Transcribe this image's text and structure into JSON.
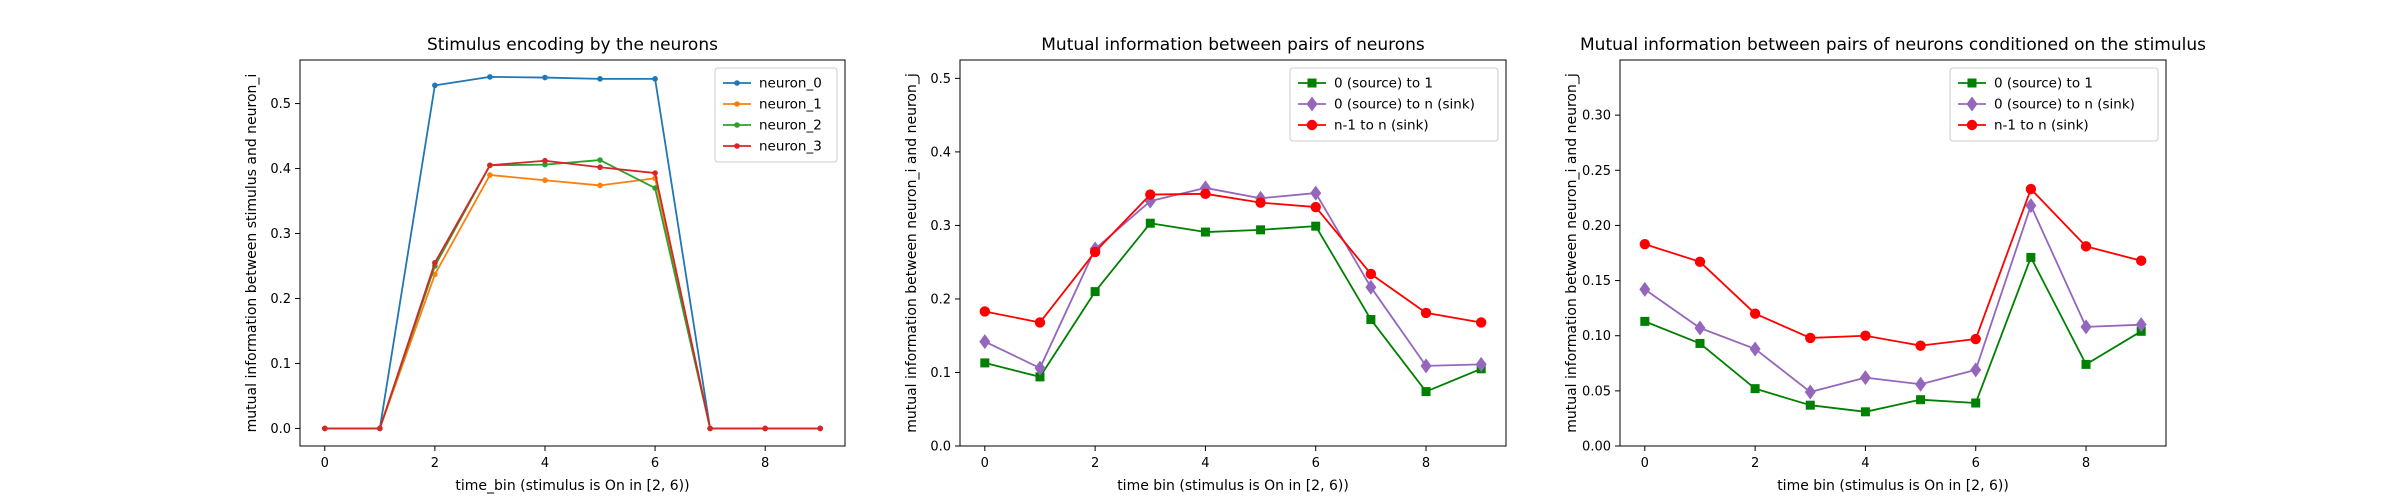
{
  "chart_data": [
    {
      "type": "line",
      "title": "Stimulus encoding by the neurons",
      "xlabel": "time_bin (stimulus is On in [2, 6))",
      "ylabel": "mutual information between stimulus and neuron_i",
      "xlim": [
        -0.45,
        9.45
      ],
      "ylim": [
        -0.027,
        0.567
      ],
      "xticks": [
        0,
        2,
        4,
        6,
        8
      ],
      "yticks": [
        0.0,
        0.1,
        0.2,
        0.3,
        0.4,
        0.5
      ],
      "ytick_decimals": 1,
      "grid": false,
      "legend_position": "top-right",
      "x": [
        0,
        1,
        2,
        3,
        4,
        5,
        6,
        7,
        8,
        9
      ],
      "series": [
        {
          "name": "neuron_0",
          "color": "#1f77b4",
          "marker": "point",
          "values": [
            0.0,
            0.0,
            0.528,
            0.541,
            0.54,
            0.538,
            0.538,
            0.0,
            0.0,
            0.0
          ]
        },
        {
          "name": "neuron_1",
          "color": "#ff7f0e",
          "marker": "point",
          "values": [
            0.0,
            0.0,
            0.237,
            0.39,
            0.382,
            0.374,
            0.385,
            0.0,
            0.0,
            0.0
          ]
        },
        {
          "name": "neuron_2",
          "color": "#2ca02c",
          "marker": "point",
          "values": [
            0.0,
            0.0,
            0.25,
            0.405,
            0.406,
            0.413,
            0.37,
            0.0,
            0.0,
            0.0
          ]
        },
        {
          "name": "neuron_3",
          "color": "#d62728",
          "marker": "point",
          "values": [
            0.0,
            0.0,
            0.255,
            0.405,
            0.412,
            0.402,
            0.393,
            0.0,
            0.0,
            0.0
          ]
        }
      ]
    },
    {
      "type": "line",
      "title": "Mutual information between pairs of neurons",
      "xlabel": "time bin (stimulus is On in [2, 6))",
      "ylabel": "mutual information between neuron_i and neuron_j",
      "xlim": [
        -0.45,
        9.45
      ],
      "ylim": [
        0.0,
        0.525
      ],
      "xticks": [
        0,
        2,
        4,
        6,
        8
      ],
      "yticks": [
        0.0,
        0.1,
        0.2,
        0.3,
        0.4,
        0.5
      ],
      "ytick_decimals": 1,
      "grid": false,
      "legend_position": "top-right",
      "x": [
        0,
        1,
        2,
        3,
        4,
        5,
        6,
        7,
        8,
        9
      ],
      "series": [
        {
          "name": "0 (source) to 1",
          "color": "#008000",
          "marker": "square",
          "values": [
            0.113,
            0.094,
            0.21,
            0.303,
            0.291,
            0.294,
            0.299,
            0.172,
            0.074,
            0.105
          ]
        },
        {
          "name": "0 (source) to n (sink)",
          "color": "#9467bd",
          "marker": "diamond",
          "values": [
            0.142,
            0.106,
            0.268,
            0.333,
            0.351,
            0.337,
            0.344,
            0.216,
            0.109,
            0.111
          ]
        },
        {
          "name": "n-1 to n (sink)",
          "color": "#ff0000",
          "marker": "circle",
          "values": [
            0.183,
            0.168,
            0.264,
            0.342,
            0.343,
            0.331,
            0.325,
            0.234,
            0.181,
            0.168
          ]
        }
      ]
    },
    {
      "type": "line",
      "title": "Mutual information between pairs of neurons conditioned on the stimulus",
      "xlabel": "time bin (stimulus is On in [2, 6))",
      "ylabel": "mutual information between neuron_i and neuron_j",
      "xlim": [
        -0.45,
        9.45
      ],
      "ylim": [
        0.0,
        0.35
      ],
      "xticks": [
        0,
        2,
        4,
        6,
        8
      ],
      "yticks": [
        0.0,
        0.05,
        0.1,
        0.15,
        0.2,
        0.25,
        0.3
      ],
      "ytick_decimals": 2,
      "grid": false,
      "legend_position": "top-right",
      "x": [
        0,
        1,
        2,
        3,
        4,
        5,
        6,
        7,
        8,
        9
      ],
      "series": [
        {
          "name": "0 (source) to 1",
          "color": "#008000",
          "marker": "square",
          "values": [
            0.113,
            0.093,
            0.052,
            0.037,
            0.031,
            0.042,
            0.039,
            0.171,
            0.074,
            0.104
          ]
        },
        {
          "name": "0 (source) to n (sink)",
          "color": "#9467bd",
          "marker": "diamond",
          "values": [
            0.142,
            0.107,
            0.088,
            0.049,
            0.062,
            0.056,
            0.069,
            0.218,
            0.108,
            0.11
          ]
        },
        {
          "name": "n-1 to n (sink)",
          "color": "#ff0000",
          "marker": "circle",
          "values": [
            0.183,
            0.167,
            0.12,
            0.098,
            0.1,
            0.091,
            0.097,
            0.233,
            0.181,
            0.168
          ]
        }
      ]
    }
  ]
}
